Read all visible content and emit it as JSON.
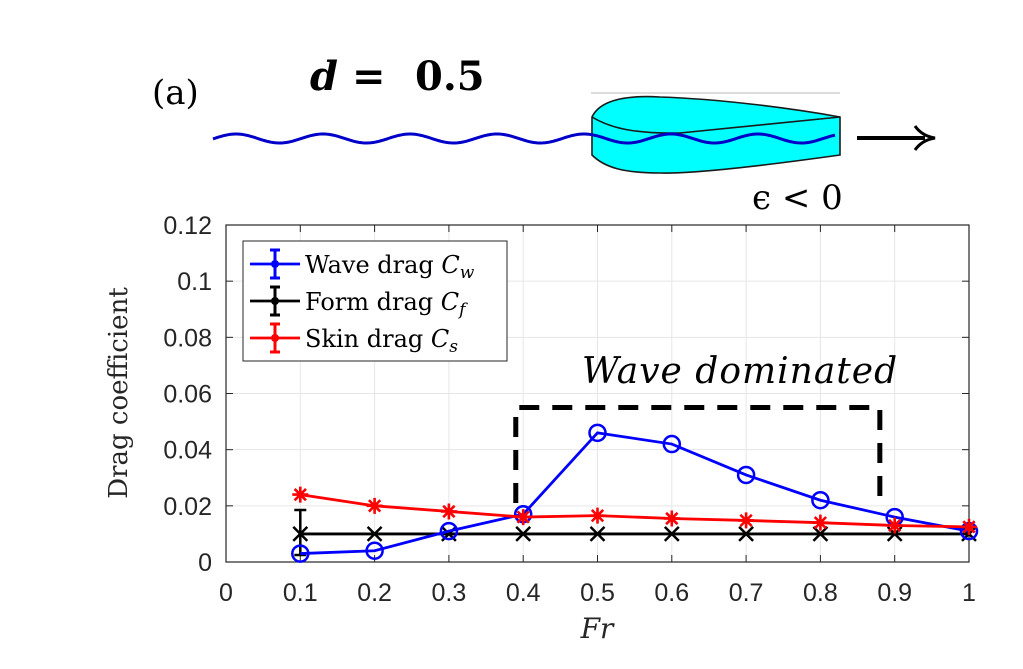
{
  "panel_label": "(a)",
  "header_equation": {
    "var": "d",
    "op": "=",
    "value": "0.5"
  },
  "schematic": {
    "condition": "ϵ < 0",
    "body_color": "#00ffff",
    "wave_color": "#0000c8",
    "direction_arrow": "→"
  },
  "chart_data": {
    "type": "line",
    "title": "",
    "xlabel": "Fr",
    "ylabel": "Drag coefficient",
    "xlim": [
      0,
      1
    ],
    "ylim": [
      0,
      0.12
    ],
    "xticks": [
      0,
      0.1,
      0.2,
      0.3,
      0.4,
      0.5,
      0.6,
      0.7,
      0.8,
      0.9,
      1
    ],
    "xtick_labels": [
      "0",
      "0.1",
      "0.2",
      "0.3",
      "0.4",
      "0.5",
      "0.6",
      "0.7",
      "0.8",
      "0.9",
      "1"
    ],
    "yticks": [
      0,
      0.02,
      0.04,
      0.06,
      0.08,
      0.1,
      0.12
    ],
    "ytick_labels": [
      "0",
      "0.02",
      "0.04",
      "0.06",
      "0.08",
      "0.1",
      "0.12"
    ],
    "grid": true,
    "legend_position": "top-left",
    "x": [
      0.1,
      0.2,
      0.3,
      0.4,
      0.5,
      0.6,
      0.7,
      0.8,
      0.9,
      1.0
    ],
    "series": [
      {
        "name": "Wave drag",
        "symbol": "C",
        "subscript": "w",
        "color": "#0000ff",
        "marker": "circle",
        "values": [
          0.003,
          0.004,
          0.011,
          0.017,
          0.046,
          0.042,
          0.031,
          0.022,
          0.016,
          0.011
        ]
      },
      {
        "name": "Form drag",
        "symbol": "C",
        "subscript": "f",
        "color": "#000000",
        "marker": "x",
        "values": [
          0.01,
          0.01,
          0.01,
          0.01,
          0.01,
          0.01,
          0.01,
          0.01,
          0.01,
          0.01
        ],
        "error_bars": [
          {
            "x": 0.1,
            "low": 0.0025,
            "high": 0.0185
          }
        ]
      },
      {
        "name": "Skin drag",
        "symbol": "C",
        "subscript": "s",
        "color": "#ff0000",
        "marker": "asterisk",
        "values": [
          0.024,
          0.02,
          0.018,
          0.016,
          0.0165,
          0.0155,
          0.0148,
          0.014,
          0.013,
          0.0125
        ]
      }
    ],
    "annotations": [
      {
        "type": "dashed-box",
        "text": "Wave dominated",
        "x_range": [
          0.39,
          0.88
        ],
        "y_top": 0.055,
        "y_bottom_left": 0.021,
        "y_bottom_right": 0.023
      }
    ]
  }
}
